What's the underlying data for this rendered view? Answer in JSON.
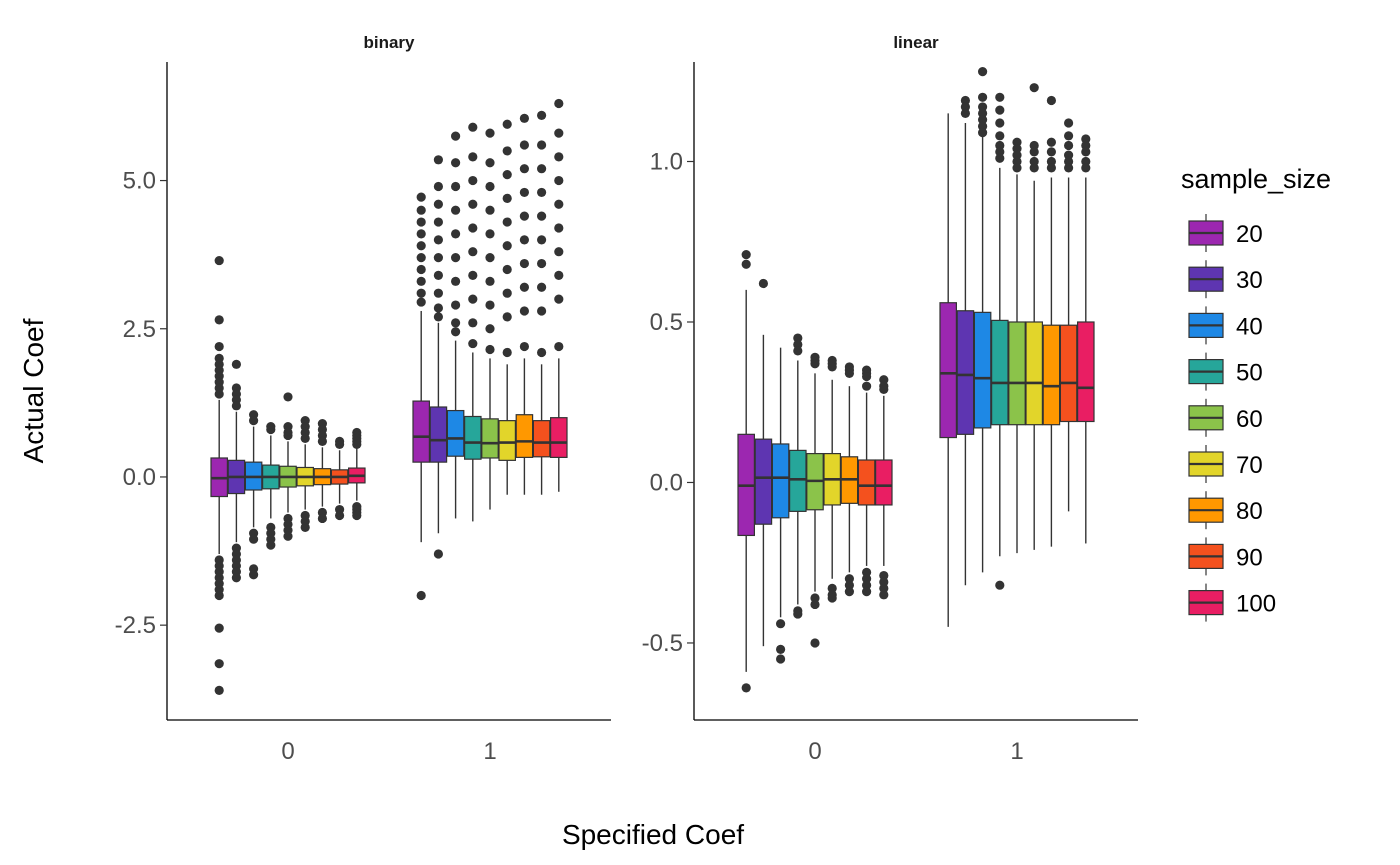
{
  "chart_data": {
    "type": "boxplot",
    "xlabel": "Specified Coef",
    "ylabel": "Actual Coef",
    "legend": {
      "title": "sample_size",
      "position": "right",
      "entries": [
        {
          "label": "20",
          "color": "#9c27b0"
        },
        {
          "label": "30",
          "color": "#5e35b1"
        },
        {
          "label": "40",
          "color": "#1e88e5"
        },
        {
          "label": "50",
          "color": "#26a69a"
        },
        {
          "label": "60",
          "color": "#8bc34a"
        },
        {
          "label": "70",
          "color": "#e2d52a"
        },
        {
          "label": "80",
          "color": "#ff9800"
        },
        {
          "label": "90",
          "color": "#f4511e"
        },
        {
          "label": "100",
          "color": "#e91e63"
        }
      ]
    },
    "categories": [
      "0",
      "1"
    ],
    "grid": false,
    "panels": [
      {
        "title": "binary",
        "ylim": [
          -4.1,
          7.0
        ],
        "y_ticks": [
          -2.5,
          0.0,
          2.5,
          5.0
        ],
        "y_tick_labels": [
          "-2.5",
          "0.0",
          "2.5",
          "5.0"
        ],
        "groups": [
          {
            "category": "0",
            "boxes": [
              {
                "q1": -0.33,
                "median": -0.02,
                "q3": 0.32,
                "whisker_low": -1.3,
                "whisker_high": 1.3,
                "outliers_high": [
                  3.65,
                  2.65,
                  2.2,
                  2.0,
                  1.9,
                  1.8,
                  1.7,
                  1.6,
                  1.5,
                  1.4
                ],
                "outliers_low": [
                  -3.6,
                  -3.15,
                  -2.55,
                  -2.0,
                  -1.9,
                  -1.8,
                  -1.7,
                  -1.6,
                  -1.5,
                  -1.4
                ]
              },
              {
                "q1": -0.28,
                "median": 0.0,
                "q3": 0.28,
                "whisker_low": -1.1,
                "whisker_high": 1.1,
                "outliers_high": [
                  1.9,
                  1.5,
                  1.4,
                  1.3,
                  1.2
                ],
                "outliers_low": [
                  -1.2,
                  -1.3,
                  -1.4,
                  -1.5,
                  -1.6,
                  -1.7
                ]
              },
              {
                "q1": -0.22,
                "median": 0.0,
                "q3": 0.25,
                "whisker_low": -0.85,
                "whisker_high": 0.85,
                "outliers_high": [
                  1.05,
                  0.95
                ],
                "outliers_low": [
                  -0.95,
                  -1.05,
                  -1.55,
                  -1.65
                ]
              },
              {
                "q1": -0.2,
                "median": 0.0,
                "q3": 0.2,
                "whisker_low": -0.7,
                "whisker_high": 0.7,
                "outliers_high": [
                  0.85,
                  0.8
                ],
                "outliers_low": [
                  -0.85,
                  -0.95,
                  -1.05,
                  -1.15
                ]
              },
              {
                "q1": -0.17,
                "median": 0.0,
                "q3": 0.18,
                "whisker_low": -0.6,
                "whisker_high": 0.6,
                "outliers_high": [
                  1.35,
                  0.85,
                  0.75,
                  0.7
                ],
                "outliers_low": [
                  -0.7,
                  -0.8,
                  -0.9,
                  -1.0
                ]
              },
              {
                "q1": -0.15,
                "median": 0.0,
                "q3": 0.16,
                "whisker_low": -0.55,
                "whisker_high": 0.55,
                "outliers_high": [
                  0.95,
                  0.85,
                  0.75,
                  0.65
                ],
                "outliers_low": [
                  -0.65,
                  -0.75,
                  -0.85
                ]
              },
              {
                "q1": -0.13,
                "median": 0.0,
                "q3": 0.14,
                "whisker_low": -0.5,
                "whisker_high": 0.5,
                "outliers_high": [
                  0.9,
                  0.8,
                  0.7,
                  0.6
                ],
                "outliers_low": [
                  -0.6,
                  -0.7
                ]
              },
              {
                "q1": -0.12,
                "median": 0.0,
                "q3": 0.12,
                "whisker_low": -0.45,
                "whisker_high": 0.45,
                "outliers_high": [
                  0.6,
                  0.55
                ],
                "outliers_low": [
                  -0.55,
                  -0.65
                ]
              },
              {
                "q1": -0.1,
                "median": 0.02,
                "q3": 0.15,
                "whisker_low": -0.4,
                "whisker_high": 0.5,
                "outliers_high": [
                  0.75,
                  0.7,
                  0.65,
                  0.6,
                  0.55
                ],
                "outliers_low": [
                  -0.5,
                  -0.55,
                  -0.6,
                  -0.65
                ]
              }
            ]
          },
          {
            "category": "1",
            "boxes": [
              {
                "q1": 0.25,
                "median": 0.68,
                "q3": 1.28,
                "whisker_low": -1.1,
                "whisker_high": 2.8,
                "outliers_high": [
                  4.72,
                  4.5,
                  4.3,
                  4.1,
                  3.9,
                  3.7,
                  3.5,
                  3.3,
                  3.1,
                  2.95
                ],
                "outliers_low": [
                  -2.0
                ]
              },
              {
                "q1": 0.25,
                "median": 0.62,
                "q3": 1.18,
                "whisker_low": -0.95,
                "whisker_high": 2.6,
                "outliers_high": [
                  5.35,
                  4.9,
                  4.6,
                  4.3,
                  4.0,
                  3.7,
                  3.4,
                  3.1,
                  2.85,
                  2.7
                ],
                "outliers_low": [
                  -1.3
                ]
              },
              {
                "q1": 0.35,
                "median": 0.65,
                "q3": 1.12,
                "whisker_low": -0.7,
                "whisker_high": 2.3,
                "outliers_high": [
                  5.75,
                  5.3,
                  4.9,
                  4.5,
                  4.1,
                  3.7,
                  3.3,
                  2.9,
                  2.6,
                  2.45
                ]
              },
              {
                "q1": 0.3,
                "median": 0.58,
                "q3": 1.02,
                "whisker_low": -0.75,
                "whisker_high": 2.1,
                "outliers_high": [
                  5.9,
                  5.4,
                  5.0,
                  4.6,
                  4.2,
                  3.8,
                  3.4,
                  3.0,
                  2.6,
                  2.25
                ]
              },
              {
                "q1": 0.32,
                "median": 0.57,
                "q3": 0.98,
                "whisker_low": -0.55,
                "whisker_high": 2.0,
                "outliers_high": [
                  5.8,
                  5.3,
                  4.9,
                  4.5,
                  4.1,
                  3.7,
                  3.3,
                  2.9,
                  2.5,
                  2.15
                ]
              },
              {
                "q1": 0.28,
                "median": 0.58,
                "q3": 0.95,
                "whisker_low": -0.3,
                "whisker_high": 1.9,
                "outliers_high": [
                  5.95,
                  5.5,
                  5.1,
                  4.7,
                  4.3,
                  3.9,
                  3.5,
                  3.1,
                  2.7,
                  2.1
                ]
              },
              {
                "q1": 0.33,
                "median": 0.6,
                "q3": 1.05,
                "whisker_low": -0.3,
                "whisker_high": 2.0,
                "outliers_high": [
                  6.05,
                  5.6,
                  5.2,
                  4.8,
                  4.4,
                  4.0,
                  3.6,
                  3.2,
                  2.8,
                  2.2
                ]
              },
              {
                "q1": 0.34,
                "median": 0.58,
                "q3": 0.95,
                "whisker_low": -0.3,
                "whisker_high": 1.9,
                "outliers_high": [
                  6.1,
                  5.6,
                  5.2,
                  4.8,
                  4.4,
                  4.0,
                  3.6,
                  3.2,
                  2.8,
                  2.1
                ]
              },
              {
                "q1": 0.33,
                "median": 0.58,
                "q3": 1.0,
                "whisker_low": -0.25,
                "whisker_high": 2.0,
                "outliers_high": [
                  6.3,
                  5.8,
                  5.4,
                  5.0,
                  4.6,
                  4.2,
                  3.8,
                  3.4,
                  3.0,
                  2.2
                ]
              }
            ]
          }
        ]
      },
      {
        "title": "linear",
        "ylim": [
          -0.74,
          1.31
        ],
        "y_ticks": [
          -0.5,
          0.0,
          0.5,
          1.0
        ],
        "y_tick_labels": [
          "-0.5",
          "0.0",
          "0.5",
          "1.0"
        ],
        "groups": [
          {
            "category": "0",
            "boxes": [
              {
                "q1": -0.165,
                "median": -0.01,
                "q3": 0.15,
                "whisker_low": -0.59,
                "whisker_high": 0.6,
                "outliers_high": [
                  0.71,
                  0.68
                ],
                "outliers_low": [
                  -0.64
                ]
              },
              {
                "q1": -0.13,
                "median": 0.015,
                "q3": 0.135,
                "whisker_low": -0.51,
                "whisker_high": 0.46,
                "outliers_high": [
                  0.62
                ]
              },
              {
                "q1": -0.11,
                "median": 0.015,
                "q3": 0.12,
                "whisker_low": -0.42,
                "whisker_high": 0.42,
                "outliers_high": [],
                "outliers_low": [
                  -0.52,
                  -0.55,
                  -0.44
                ]
              },
              {
                "q1": -0.09,
                "median": 0.01,
                "q3": 0.1,
                "whisker_low": -0.38,
                "whisker_high": 0.38,
                "outliers_high": [
                  0.45,
                  0.43,
                  0.41
                ],
                "outliers_low": [
                  -0.41,
                  -0.4
                ]
              },
              {
                "q1": -0.085,
                "median": 0.005,
                "q3": 0.09,
                "whisker_low": -0.34,
                "whisker_high": 0.34,
                "outliers_high": [
                  0.39,
                  0.38,
                  0.37
                ],
                "outliers_low": [
                  -0.36,
                  -0.38,
                  -0.5
                ]
              },
              {
                "q1": -0.07,
                "median": 0.01,
                "q3": 0.09,
                "whisker_low": -0.3,
                "whisker_high": 0.32,
                "outliers_high": [
                  0.38,
                  0.37,
                  0.36
                ],
                "outliers_low": [
                  -0.33,
                  -0.35,
                  -0.36
                ]
              },
              {
                "q1": -0.065,
                "median": 0.01,
                "q3": 0.08,
                "whisker_low": -0.28,
                "whisker_high": 0.3,
                "outliers_high": [
                  0.36,
                  0.35,
                  0.34
                ],
                "outliers_low": [
                  -0.3,
                  -0.32,
                  -0.34
                ]
              },
              {
                "q1": -0.07,
                "median": -0.01,
                "q3": 0.07,
                "whisker_low": -0.26,
                "whisker_high": 0.28,
                "outliers_high": [
                  0.35,
                  0.34,
                  0.33,
                  0.3
                ],
                "outliers_low": [
                  -0.28,
                  -0.3,
                  -0.32,
                  -0.34
                ]
              },
              {
                "q1": -0.07,
                "median": -0.01,
                "q3": 0.07,
                "whisker_low": -0.26,
                "whisker_high": 0.27,
                "outliers_high": [
                  0.32,
                  0.3,
                  0.29
                ],
                "outliers_low": [
                  -0.29,
                  -0.31,
                  -0.33,
                  -0.35
                ]
              }
            ]
          },
          {
            "category": "1",
            "boxes": [
              {
                "q1": 0.14,
                "median": 0.34,
                "q3": 0.56,
                "whisker_low": -0.45,
                "whisker_high": 1.15,
                "outliers_high": []
              },
              {
                "q1": 0.15,
                "median": 0.335,
                "q3": 0.535,
                "whisker_low": -0.32,
                "whisker_high": 1.12,
                "outliers_high": [
                  1.19,
                  1.17,
                  1.15
                ]
              },
              {
                "q1": 0.17,
                "median": 0.325,
                "q3": 0.53,
                "whisker_low": -0.28,
                "whisker_high": 1.08,
                "outliers_high": [
                  1.28,
                  1.2,
                  1.17,
                  1.15,
                  1.13,
                  1.11,
                  1.09
                ]
              },
              {
                "q1": 0.18,
                "median": 0.31,
                "q3": 0.505,
                "whisker_low": -0.23,
                "whisker_high": 0.98,
                "outliers_high": [
                  1.2,
                  1.16,
                  1.12,
                  1.08,
                  1.05,
                  1.03,
                  1.01
                ],
                "outliers_low": [
                  -0.32
                ]
              },
              {
                "q1": 0.18,
                "median": 0.31,
                "q3": 0.5,
                "whisker_low": -0.22,
                "whisker_high": 0.96,
                "outliers_high": [
                  1.06,
                  1.04,
                  1.02,
                  1.0,
                  0.98
                ]
              },
              {
                "q1": 0.18,
                "median": 0.31,
                "q3": 0.5,
                "whisker_low": -0.21,
                "whisker_high": 0.94,
                "outliers_high": [
                  1.23,
                  1.05,
                  1.03,
                  1.0,
                  0.98
                ]
              },
              {
                "q1": 0.18,
                "median": 0.3,
                "q3": 0.49,
                "whisker_low": -0.2,
                "whisker_high": 0.95,
                "outliers_high": [
                  1.19,
                  1.06,
                  1.03,
                  1.0,
                  0.98
                ]
              },
              {
                "q1": 0.19,
                "median": 0.31,
                "q3": 0.49,
                "whisker_low": -0.09,
                "whisker_high": 0.95,
                "outliers_high": [
                  1.12,
                  1.08,
                  1.05,
                  1.02,
                  1.0,
                  0.98
                ]
              },
              {
                "q1": 0.19,
                "median": 0.295,
                "q3": 0.5,
                "whisker_low": -0.19,
                "whisker_high": 0.95,
                "outliers_high": [
                  1.07,
                  1.05,
                  1.03,
                  1.0,
                  0.98
                ]
              }
            ]
          }
        ]
      }
    ]
  }
}
